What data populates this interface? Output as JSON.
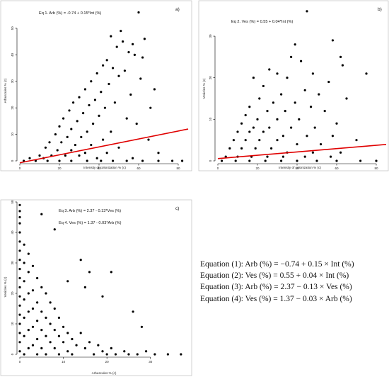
{
  "charts": [
    {
      "id": "a",
      "panel_label": "a)",
      "equations": [
        "Eq 1. Arb (%) = -0.74 + 0.15*Int (%)"
      ],
      "xlabel": "Intensity of colonization % (c)",
      "ylabel": "Arbuscules % (c)",
      "xlim": [
        0,
        85
      ],
      "ylim": [
        0,
        58
      ],
      "xticks": [
        0,
        20,
        40,
        60,
        80
      ],
      "yticks": [
        0,
        10,
        20,
        30,
        40,
        50
      ],
      "regression": {
        "intercept": -0.74,
        "slope": 0.15,
        "color": "#e00000"
      }
    },
    {
      "id": "b",
      "panel_label": "b)",
      "equations": [
        "Eq 2. Ves (%) = 0.55 + 0.04*Int (%)"
      ],
      "xlabel": "Intensity of colonization % (c)",
      "ylabel": "Vesicles % (c)",
      "xlim": [
        0,
        85
      ],
      "ylim": [
        0,
        37
      ],
      "xticks": [
        0,
        20,
        40,
        60,
        80
      ],
      "yticks": [
        0,
        10,
        20,
        30
      ],
      "regression": {
        "intercept": 0.55,
        "slope": 0.04,
        "color": "#e00000"
      }
    },
    {
      "id": "c",
      "panel_label": "c)",
      "equations": [
        "Eq 3. Arb (%) = 2.37 - 0.13*Ves (%)",
        "Eq 4. Ves (%) = 1.37 - 0.03*Arb (%)"
      ],
      "xlabel": "Arbuscules % (c)",
      "ylabel": "Vesicles % (c)",
      "xlim": [
        0,
        38
      ],
      "ylim": [
        0,
        50
      ],
      "xticks": [
        0,
        10,
        20,
        30
      ],
      "yticks": [
        0,
        10,
        20,
        30,
        40,
        50
      ],
      "regression": null
    }
  ],
  "equation_list": [
    "Equation (1): Arb (%) = −0.74 + 0.15 × Int (%)",
    "Equation (2): Ves (%) = 0.55 + 0.04 × Int (%)",
    "Equation (3): Arb (%) = 2.37 − 0.13 × Ves (%)",
    "Equation (4): Ves (%) = 1.37 − 0.03 × Arb (%)"
  ],
  "chart_data": [
    {
      "type": "scatter",
      "xlabel": "Intensity of colonization % (c)",
      "ylabel": "Arbuscules % (c)",
      "xlim": [
        0,
        85
      ],
      "ylim": [
        0,
        58
      ],
      "series": [
        {
          "points": [
            [
              60,
              56
            ],
            [
              51,
              49
            ],
            [
              46,
              47
            ],
            [
              63,
              46
            ],
            [
              52,
              45
            ],
            [
              57,
              44
            ],
            [
              49,
              43
            ],
            [
              55,
              41
            ],
            [
              58,
              40
            ],
            [
              62,
              39
            ],
            [
              44,
              38
            ],
            [
              42,
              36
            ],
            [
              47,
              35
            ],
            [
              53,
              34
            ],
            [
              39,
              33
            ],
            [
              50,
              32
            ],
            [
              61,
              31
            ],
            [
              36,
              30
            ],
            [
              45,
              29
            ],
            [
              68,
              27
            ],
            [
              33,
              27
            ],
            [
              41,
              26
            ],
            [
              56,
              25
            ],
            [
              30,
              24
            ],
            [
              38,
              23
            ],
            [
              48,
              22
            ],
            [
              27,
              22
            ],
            [
              35,
              21
            ],
            [
              43,
              20
            ],
            [
              66,
              20
            ],
            [
              25,
              19
            ],
            [
              32,
              18
            ],
            [
              40,
              17
            ],
            [
              54,
              16
            ],
            [
              22,
              16
            ],
            [
              29,
              15
            ],
            [
              37,
              14
            ],
            [
              59,
              14
            ],
            [
              20,
              13
            ],
            [
              26,
              12
            ],
            [
              34,
              11
            ],
            [
              46,
              11
            ],
            [
              18,
              10
            ],
            [
              24,
              9
            ],
            [
              31,
              9
            ],
            [
              42,
              8
            ],
            [
              65,
              8
            ],
            [
              15,
              7
            ],
            [
              21,
              7
            ],
            [
              28,
              6
            ],
            [
              36,
              6
            ],
            [
              50,
              5
            ],
            [
              13,
              5
            ],
            [
              19,
              4
            ],
            [
              26,
              4
            ],
            [
              33,
              3
            ],
            [
              44,
              3
            ],
            [
              70,
              3
            ],
            [
              10,
              2
            ],
            [
              16,
              2
            ],
            [
              23,
              2
            ],
            [
              30,
              2
            ],
            [
              39,
              1
            ],
            [
              57,
              1
            ],
            [
              5,
              1
            ],
            [
              12,
              1
            ],
            [
              2,
              0
            ],
            [
              8,
              0
            ],
            [
              14,
              0
            ],
            [
              20,
              0
            ],
            [
              26,
              0
            ],
            [
              34,
              0
            ],
            [
              41,
              0
            ],
            [
              47,
              0
            ],
            [
              54,
              0
            ],
            [
              62,
              0
            ],
            [
              70,
              0
            ],
            [
              77,
              0
            ],
            [
              82,
              0
            ]
          ]
        }
      ],
      "regression": {
        "intercept": -0.74,
        "slope": 0.15
      }
    },
    {
      "type": "scatter",
      "xlabel": "Intensity of colonization % (c)",
      "ylabel": "Vesicles % (c)",
      "xlim": [
        0,
        85
      ],
      "ylim": [
        0,
        37
      ],
      "series": [
        {
          "points": [
            [
              45,
              36
            ],
            [
              39,
              28
            ],
            [
              58,
              29
            ],
            [
              62,
              25
            ],
            [
              37,
              25
            ],
            [
              42,
              24
            ],
            [
              63,
              23
            ],
            [
              26,
              22
            ],
            [
              30,
              21
            ],
            [
              48,
              21
            ],
            [
              75,
              21
            ],
            [
              18,
              20
            ],
            [
              35,
              20
            ],
            [
              56,
              19
            ],
            [
              23,
              18
            ],
            [
              44,
              17
            ],
            [
              32,
              16
            ],
            [
              51,
              16
            ],
            [
              65,
              15
            ],
            [
              21,
              15
            ],
            [
              28,
              14
            ],
            [
              39,
              14
            ],
            [
              47,
              13
            ],
            [
              16,
              13
            ],
            [
              25,
              12
            ],
            [
              34,
              12
            ],
            [
              54,
              12
            ],
            [
              14,
              11
            ],
            [
              20,
              10
            ],
            [
              30,
              10
            ],
            [
              41,
              10
            ],
            [
              60,
              9
            ],
            [
              12,
              9
            ],
            [
              18,
              8
            ],
            [
              26,
              8
            ],
            [
              37,
              8
            ],
            [
              49,
              8
            ],
            [
              10,
              7
            ],
            [
              16,
              7
            ],
            [
              23,
              7
            ],
            [
              33,
              6
            ],
            [
              45,
              6
            ],
            [
              58,
              6
            ],
            [
              8,
              5
            ],
            [
              14,
              5
            ],
            [
              21,
              5
            ],
            [
              30,
              5
            ],
            [
              40,
              4
            ],
            [
              52,
              4
            ],
            [
              70,
              5
            ],
            [
              6,
              3
            ],
            [
              12,
              3
            ],
            [
              19,
              3
            ],
            [
              27,
              3
            ],
            [
              35,
              2
            ],
            [
              48,
              2
            ],
            [
              62,
              2
            ],
            [
              4,
              1
            ],
            [
              10,
              1
            ],
            [
              17,
              1
            ],
            [
              25,
              1
            ],
            [
              33,
              1
            ],
            [
              44,
              1
            ],
            [
              57,
              1
            ],
            [
              2,
              0
            ],
            [
              9,
              0
            ],
            [
              16,
              0
            ],
            [
              24,
              0
            ],
            [
              32,
              0
            ],
            [
              40,
              0
            ],
            [
              50,
              0
            ],
            [
              60,
              0
            ],
            [
              72,
              0
            ],
            [
              80,
              0
            ]
          ]
        }
      ],
      "regression": {
        "intercept": 0.55,
        "slope": 0.04
      }
    },
    {
      "type": "scatter",
      "xlabel": "Arbuscules % (c)",
      "ylabel": "Vesicles % (c)",
      "xlim": [
        0,
        38
      ],
      "ylim": [
        0,
        50
      ],
      "series": [
        {
          "points": [
            [
              0,
              49
            ],
            [
              0,
              47
            ],
            [
              0,
              45
            ],
            [
              0,
              43
            ],
            [
              0,
              40
            ],
            [
              0,
              37
            ],
            [
              0,
              34
            ],
            [
              0,
              31
            ],
            [
              0,
              28
            ],
            [
              0,
              25
            ],
            [
              0,
              22
            ],
            [
              0,
              19
            ],
            [
              0,
              16
            ],
            [
              0,
              13
            ],
            [
              0,
              10
            ],
            [
              0,
              7
            ],
            [
              0,
              4
            ],
            [
              0,
              1
            ],
            [
              1,
              36
            ],
            [
              1,
              30
            ],
            [
              1,
              24
            ],
            [
              1,
              18
            ],
            [
              1,
              12
            ],
            [
              1,
              6
            ],
            [
              1,
              0
            ],
            [
              2,
              33
            ],
            [
              2,
              27
            ],
            [
              2,
              20
            ],
            [
              2,
              14
            ],
            [
              2,
              8
            ],
            [
              2,
              2
            ],
            [
              3,
              29
            ],
            [
              3,
              21
            ],
            [
              3,
              15
            ],
            [
              3,
              9
            ],
            [
              3,
              3
            ],
            [
              4,
              25
            ],
            [
              4,
              17
            ],
            [
              4,
              11
            ],
            [
              4,
              5
            ],
            [
              4,
              0
            ],
            [
              5,
              22
            ],
            [
              5,
              14
            ],
            [
              5,
              8
            ],
            [
              5,
              2
            ],
            [
              6,
              20
            ],
            [
              6,
              12
            ],
            [
              6,
              6
            ],
            [
              6,
              0
            ],
            [
              7,
              17
            ],
            [
              7,
              10
            ],
            [
              7,
              4
            ],
            [
              8,
              15
            ],
            [
              8,
              8
            ],
            [
              8,
              2
            ],
            [
              9,
              12
            ],
            [
              9,
              6
            ],
            [
              9,
              0
            ],
            [
              10,
              9
            ],
            [
              10,
              4
            ],
            [
              11,
              7
            ],
            [
              11,
              1
            ],
            [
              12,
              5
            ],
            [
              12,
              0
            ],
            [
              13,
              3
            ],
            [
              14,
              7
            ],
            [
              15,
              2
            ],
            [
              16,
              4
            ],
            [
              17,
              0
            ],
            [
              18,
              3
            ],
            [
              19,
              1
            ],
            [
              20,
              0
            ],
            [
              21,
              2
            ],
            [
              22,
              0
            ],
            [
              24,
              1
            ],
            [
              25,
              0
            ],
            [
              27,
              0
            ],
            [
              29,
              1
            ],
            [
              31,
              0
            ],
            [
              34,
              0
            ],
            [
              37,
              0
            ],
            [
              5,
              46
            ],
            [
              8,
              41
            ],
            [
              14,
              31
            ],
            [
              15,
              22
            ],
            [
              16,
              27
            ],
            [
              11,
              24
            ],
            [
              21,
              27
            ],
            [
              19,
              19
            ],
            [
              26,
              14
            ],
            [
              28,
              9
            ]
          ]
        }
      ]
    }
  ]
}
